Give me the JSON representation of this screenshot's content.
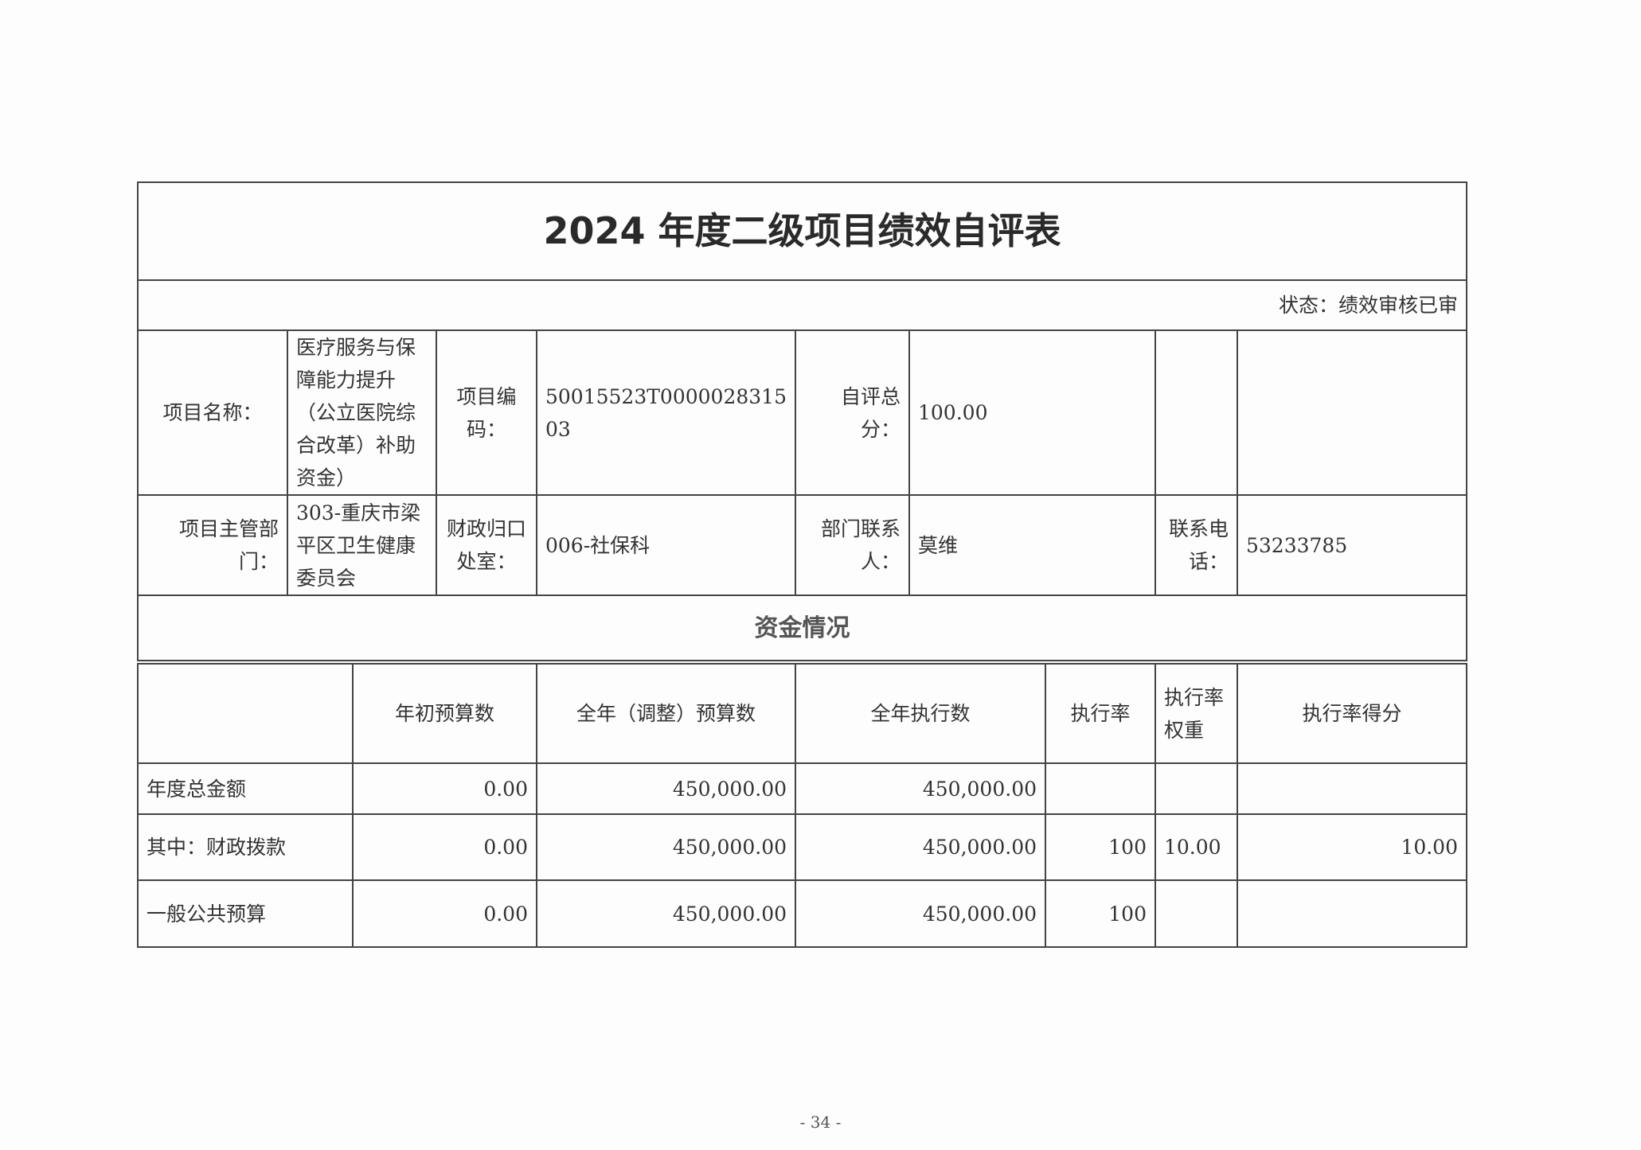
{
  "title": "2024 年度二级项目绩效自评表",
  "status": "状态：绩效审核已审",
  "info": {
    "project_name_label": "项目名称：",
    "project_name": "医疗服务与保障能力提升（公立医院综合改革）补助资金）",
    "project_code_label": "项目编码：",
    "project_code": "50015523T000002831503",
    "score_label": "自评总分：",
    "score": "100.00",
    "dept_label": "项目主管部门：",
    "dept": "303-重庆市梁平区卫生健康委员会",
    "finance_office_label": "财政归口处室：",
    "finance_office": "006-社保科",
    "contact_label": "部门联系人：",
    "contact": "莫维",
    "phone_label": "联系电话：",
    "phone": "53233785"
  },
  "funds": {
    "section_title": "资金情况",
    "headers": [
      "",
      "年初预算数",
      "全年（调整）预算数",
      "全年执行数",
      "执行率",
      "执行率权重",
      "执行率得分"
    ],
    "rows": [
      [
        "年度总金额",
        "0.00",
        "450,000.00",
        "450,000.00",
        "",
        "",
        ""
      ],
      [
        "其中：财政拨款",
        "0.00",
        "450,000.00",
        "450,000.00",
        "100",
        "10.00",
        "10.00"
      ],
      [
        "一般公共预算",
        "0.00",
        "450,000.00",
        "450,000.00",
        "100",
        "",
        ""
      ]
    ]
  },
  "page_number": "- 34 -"
}
